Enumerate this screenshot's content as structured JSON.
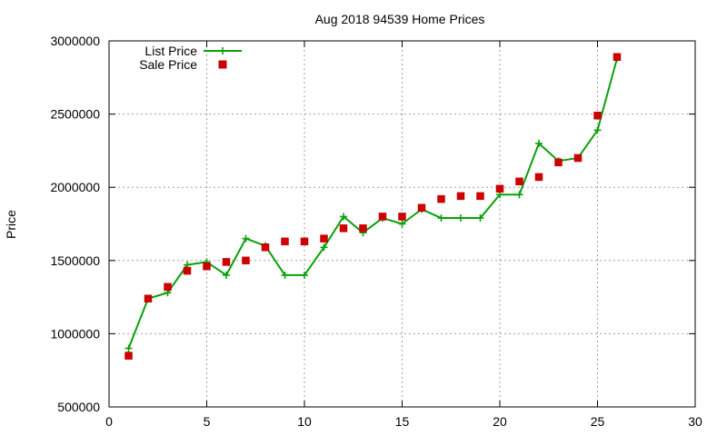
{
  "chart_data": {
    "type": "line",
    "title": "Aug 2018 94539 Home Prices",
    "xlabel": "",
    "ylabel": "Price",
    "xlim": [
      0,
      30
    ],
    "ylim": [
      500000,
      3000000
    ],
    "x_ticks": [
      0,
      5,
      10,
      15,
      20,
      25,
      30
    ],
    "y_ticks": [
      500000,
      1000000,
      1500000,
      2000000,
      2500000,
      3000000
    ],
    "grid": true,
    "legend_position": "top-left",
    "series": [
      {
        "name": "List Price",
        "style": "line+points",
        "marker": "plus",
        "color": "#0aa10a",
        "points": [
          {
            "x": 1,
            "y": 900000
          },
          {
            "x": 2,
            "y": 1240000
          },
          {
            "x": 3,
            "y": 1280000
          },
          {
            "x": 4,
            "y": 1470000
          },
          {
            "x": 5,
            "y": 1490000
          },
          {
            "x": 6,
            "y": 1400000
          },
          {
            "x": 7,
            "y": 1650000
          },
          {
            "x": 8,
            "y": 1600000
          },
          {
            "x": 9,
            "y": 1400000
          },
          {
            "x": 10,
            "y": 1400000
          },
          {
            "x": 11,
            "y": 1590000
          },
          {
            "x": 12,
            "y": 1800000
          },
          {
            "x": 13,
            "y": 1690000
          },
          {
            "x": 14,
            "y": 1790000
          },
          {
            "x": 15,
            "y": 1750000
          },
          {
            "x": 16,
            "y": 1850000
          },
          {
            "x": 17,
            "y": 1790000
          },
          {
            "x": 18,
            "y": 1790000
          },
          {
            "x": 19,
            "y": 1790000
          },
          {
            "x": 20,
            "y": 1950000
          },
          {
            "x": 21,
            "y": 1950000
          },
          {
            "x": 22,
            "y": 2300000
          },
          {
            "x": 23,
            "y": 2180000
          },
          {
            "x": 24,
            "y": 2200000
          },
          {
            "x": 25,
            "y": 2390000
          },
          {
            "x": 26,
            "y": 2880000
          }
        ]
      },
      {
        "name": "Sale Price",
        "style": "points",
        "marker": "square",
        "color": "#cc0000",
        "points": [
          {
            "x": 1,
            "y": 850000
          },
          {
            "x": 2,
            "y": 1240000
          },
          {
            "x": 3,
            "y": 1320000
          },
          {
            "x": 4,
            "y": 1430000
          },
          {
            "x": 5,
            "y": 1460000
          },
          {
            "x": 6,
            "y": 1490000
          },
          {
            "x": 7,
            "y": 1500000
          },
          {
            "x": 8,
            "y": 1590000
          },
          {
            "x": 9,
            "y": 1630000
          },
          {
            "x": 10,
            "y": 1630000
          },
          {
            "x": 11,
            "y": 1650000
          },
          {
            "x": 12,
            "y": 1720000
          },
          {
            "x": 13,
            "y": 1720000
          },
          {
            "x": 14,
            "y": 1800000
          },
          {
            "x": 15,
            "y": 1800000
          },
          {
            "x": 16,
            "y": 1860000
          },
          {
            "x": 17,
            "y": 1920000
          },
          {
            "x": 18,
            "y": 1940000
          },
          {
            "x": 19,
            "y": 1940000
          },
          {
            "x": 20,
            "y": 1990000
          },
          {
            "x": 21,
            "y": 2040000
          },
          {
            "x": 22,
            "y": 2070000
          },
          {
            "x": 23,
            "y": 2170000
          },
          {
            "x": 24,
            "y": 2200000
          },
          {
            "x": 25,
            "y": 2490000
          },
          {
            "x": 26,
            "y": 2890000
          }
        ]
      }
    ]
  }
}
